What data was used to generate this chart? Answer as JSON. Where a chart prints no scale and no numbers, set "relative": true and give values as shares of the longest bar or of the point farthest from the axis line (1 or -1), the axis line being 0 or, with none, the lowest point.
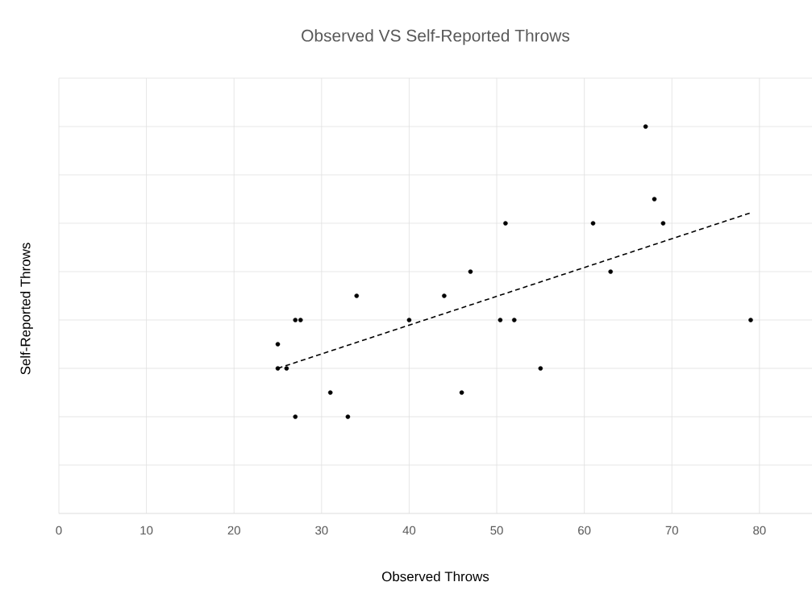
{
  "chart_data": {
    "type": "scatter",
    "title": "Observed VS Self-Reported Throws",
    "xlabel": "Observed Throws",
    "ylabel": "Self-Reported Throws",
    "relative": true,
    "xlim": [
      0,
      86
    ],
    "xticks": [
      0,
      10,
      20,
      30,
      40,
      50,
      60,
      70,
      80
    ],
    "grid": true,
    "marker": "circle",
    "series": [
      {
        "color": "#000000",
        "x": [
          25,
          25,
          26,
          27,
          27.6,
          27,
          31,
          33,
          34,
          40,
          44,
          46,
          47,
          50.4,
          51,
          52,
          55,
          61,
          63,
          67,
          68,
          69,
          79
        ],
        "values": [
          0.4375,
          0.375,
          0.375,
          0.5,
          0.5,
          0.25,
          0.3125,
          0.25,
          0.5625,
          0.5,
          0.5625,
          0.3125,
          0.625,
          0.5,
          0.75,
          0.5,
          0.375,
          0.75,
          0.625,
          1.0,
          0.8125,
          0.75,
          0.5
        ]
      },
      {
        "type": "line",
        "line_style": "dashed",
        "marker": "none",
        "color": "#000000",
        "x": [
          25,
          79
        ],
        "values": [
          0.375,
          0.777
        ]
      }
    ]
  }
}
